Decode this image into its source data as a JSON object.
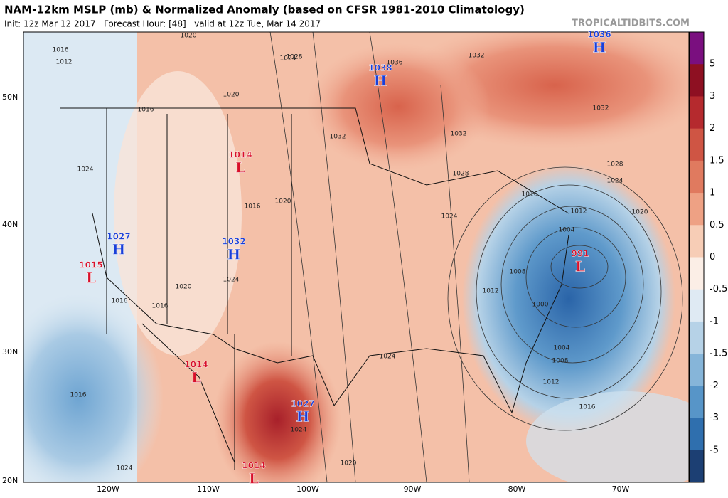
{
  "header": {
    "title": "NAM-12km MSLP (mb) & Normalized Anomaly (based on CFSR 1981-2010 Climatology)",
    "subtitle": "Init: 12z Mar 12 2017   Forecast Hour: [48]   valid at 12z Tue, Mar 14 2017",
    "watermark": "TROPICALTIDBITS.COM"
  },
  "colorbar": {
    "ticks": [
      5,
      3,
      2,
      1.5,
      1,
      0.5,
      0,
      -0.5,
      -1,
      -1.5,
      -2,
      -3,
      -5
    ],
    "colors": [
      "#7a0f7f",
      "#8e1022",
      "#b52a2e",
      "#cf5544",
      "#e07a5f",
      "#eea184",
      "#f7cdb6",
      "#fbeee6",
      "#dfeaf3",
      "#b6d2e7",
      "#86b5d9",
      "#5795c8",
      "#2f6fae",
      "#1c3f73"
    ]
  },
  "axes": {
    "lat_labels": [
      "50N",
      "40N",
      "30N",
      "20N"
    ],
    "lon_labels": [
      "120W",
      "110W",
      "100W",
      "90W",
      "80W",
      "70W"
    ]
  },
  "centers": [
    {
      "value": "1036",
      "symbol": "H"
    },
    {
      "value": "1038",
      "symbol": "H"
    },
    {
      "value": "1014",
      "symbol": "L"
    },
    {
      "value": "1027",
      "symbol": "H"
    },
    {
      "value": "1015",
      "symbol": "L"
    },
    {
      "value": "1032",
      "symbol": "H"
    },
    {
      "value": "991",
      "symbol": "L"
    },
    {
      "value": "1014",
      "symbol": "L"
    },
    {
      "value": "1027",
      "symbol": "H"
    },
    {
      "value": "1014",
      "symbol": "L"
    }
  ],
  "isobar_labels": [
    "1016",
    "1012",
    "1020",
    "1016",
    "1020",
    "1024",
    "1028",
    "1036",
    "1032",
    "1032",
    "1032",
    "1032",
    "1028",
    "1028",
    "1024",
    "1016",
    "1012",
    "1004",
    "1020",
    "1024",
    "1008",
    "1012",
    "1000",
    "1004",
    "1008",
    "1012",
    "1016",
    "1016",
    "1016",
    "1016",
    "1024",
    "1024",
    "1020",
    "1020",
    "1024",
    "1024",
    "1016",
    "1020",
    "1024"
  ]
}
